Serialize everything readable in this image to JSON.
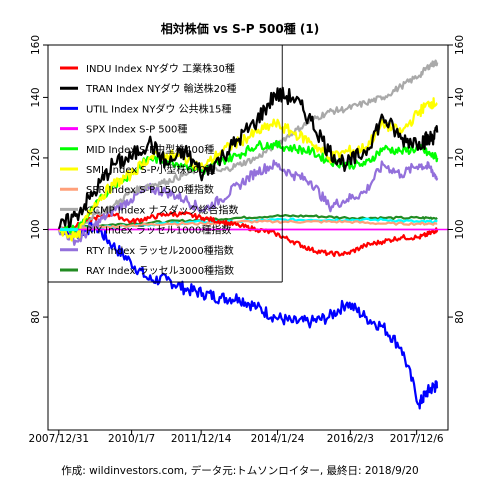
{
  "chart_data": {
    "type": "line",
    "title": "相対株価 vs S-P 500種 (1)",
    "caption": "作成: wildinvestors.com, データ元:トムソンロイター, 最終日: 2018/9/20",
    "xlabel": "",
    "ylabel": "",
    "x_ticks": [
      "2007/12/31",
      "2010/1/7",
      "2011/12/14",
      "2014/1/24",
      "2016/2/3",
      "2017/12/6"
    ],
    "x_tick_positions": [
      0.0,
      2.02,
      3.95,
      6.07,
      8.09,
      9.93
    ],
    "xlim": [
      -0.3,
      10.8
    ],
    "ylim": [
      60,
      160
    ],
    "y_ticks_left": [
      "80",
      "100",
      "120",
      "140",
      "160"
    ],
    "y_ticks_right": [
      "80",
      "100",
      "120",
      "140",
      "160"
    ],
    "y_tick_values": [
      80,
      100,
      120,
      140,
      160
    ],
    "log_scale": true,
    "grid": false,
    "reference_line": {
      "y": 100,
      "color": "#ff00ff"
    },
    "legend_position": "top-left",
    "series": [
      {
        "name": "INDU Index NYダウ 工業株30種",
        "color": "#ff0000",
        "x": [
          0,
          0.5,
          1,
          1.5,
          2,
          2.5,
          3,
          3.5,
          4,
          4.5,
          5,
          5.5,
          6,
          6.5,
          7,
          7.5,
          8,
          8.5,
          9,
          9.5,
          10,
          10.3,
          10.5
        ],
        "values": [
          100,
          101,
          103,
          104,
          102,
          103,
          104,
          104,
          103,
          102,
          101,
          100,
          99,
          97,
          95,
          94,
          94,
          96,
          97,
          98,
          98,
          99,
          100
        ]
      },
      {
        "name": "TRAN Index NYダウ 輸送株20種",
        "color": "#000000",
        "x": [
          0,
          0.5,
          1,
          1.5,
          2,
          2.5,
          3,
          3.5,
          4,
          4.5,
          5,
          5.5,
          6,
          6.5,
          7,
          7.5,
          8,
          8.5,
          9,
          9.5,
          10,
          10.3,
          10.5
        ],
        "values": [
          100,
          104,
          110,
          118,
          120,
          125,
          118,
          122,
          115,
          120,
          126,
          132,
          141,
          140,
          132,
          122,
          118,
          122,
          133,
          126,
          125,
          126,
          128
        ]
      },
      {
        "name": "UTIL Index NYダウ 公共株15種",
        "color": "#0000ff",
        "x": [
          0,
          0.5,
          1,
          1.5,
          2,
          2.5,
          3,
          3.5,
          4,
          4.5,
          5,
          5.5,
          6,
          6.5,
          7,
          7.5,
          8,
          8.5,
          9,
          9.5,
          10,
          10.2,
          10.4,
          10.5
        ],
        "values": [
          100,
          99,
          101,
          96,
          92,
          88,
          88,
          86,
          85,
          84,
          84,
          82,
          80,
          79,
          79,
          80,
          83,
          80,
          78,
          74,
          64,
          66,
          67,
          67
        ]
      },
      {
        "name": "SPX Index S-P 500種",
        "color": "#ff00ff",
        "x": [
          0,
          10.5
        ],
        "values": [
          100,
          100
        ]
      },
      {
        "name": "MID Index S-P中型株400種",
        "color": "#00ff00",
        "x": [
          0,
          0.5,
          1,
          1.5,
          2,
          2.5,
          3,
          3.5,
          4,
          4.5,
          5,
          5.5,
          6,
          6.5,
          7,
          7.5,
          8,
          8.5,
          9,
          9.5,
          10,
          10.3,
          10.5
        ],
        "values": [
          100,
          100,
          106,
          112,
          115,
          120,
          119,
          118,
          116,
          119,
          121,
          124,
          124,
          123,
          122,
          119,
          118,
          118,
          123,
          122,
          123,
          121,
          120
        ]
      },
      {
        "name": "SML Index S-P小型株600種",
        "color": "#ffff00",
        "x": [
          0,
          0.5,
          1,
          1.5,
          2,
          2.5,
          3,
          3.5,
          4,
          4.5,
          5,
          5.5,
          6,
          6.5,
          7,
          7.5,
          8,
          8.5,
          9,
          9.5,
          10,
          10.3,
          10.5
        ],
        "values": [
          100,
          98,
          107,
          112,
          115,
          120,
          121,
          120,
          117,
          122,
          125,
          128,
          131,
          128,
          125,
          120,
          122,
          123,
          131,
          128,
          135,
          138,
          138
        ]
      },
      {
        "name": "SPR Index S-P 1500種指数",
        "color": "#ffa07a",
        "x": [
          0,
          1,
          2,
          3,
          4,
          5,
          6,
          7,
          8,
          9,
          10,
          10.5
        ],
        "values": [
          100,
          100.5,
          101,
          101.5,
          101.5,
          102,
          102,
          102,
          102,
          101.5,
          101.5,
          101.5
        ]
      },
      {
        "name": "CCMP Index ナスダック総合指数",
        "color": "#a9a9a9",
        "x": [
          0,
          0.5,
          1,
          1.5,
          2,
          2.5,
          3,
          3.5,
          4,
          4.5,
          5,
          5.5,
          6,
          6.5,
          7,
          7.5,
          8,
          8.5,
          9,
          9.5,
          10,
          10.3,
          10.5
        ],
        "values": [
          100,
          100,
          104,
          106,
          110,
          112,
          113,
          115,
          117,
          116,
          118,
          120,
          124,
          128,
          132,
          135,
          136,
          138,
          140,
          144,
          148,
          152,
          153
        ]
      },
      {
        "name": "RIY Index ラッセル1000種指数",
        "color": "#00ffff",
        "x": [
          0,
          1,
          2,
          3,
          4,
          5,
          6,
          7,
          8,
          9,
          10,
          10.5
        ],
        "values": [
          100,
          100.5,
          101,
          101.5,
          102,
          102,
          102.5,
          102.5,
          102.5,
          102.5,
          102,
          102
        ]
      },
      {
        "name": "RTY Index ラッセル2000種指数",
        "color": "#9370db",
        "x": [
          0,
          0.5,
          1,
          1.5,
          2,
          2.5,
          3,
          3.5,
          4,
          4.5,
          5,
          5.5,
          6,
          6.5,
          7,
          7.5,
          8,
          8.5,
          9,
          9.5,
          10,
          10.3,
          10.5
        ],
        "values": [
          100,
          97,
          101,
          105,
          108,
          111,
          110,
          108,
          105,
          108,
          112,
          116,
          118,
          115,
          113,
          106,
          108,
          110,
          118,
          115,
          118,
          117,
          114
        ]
      },
      {
        "name": "RAY Index ラッセル3000種指数",
        "color": "#228b22",
        "x": [
          0,
          1,
          2,
          3,
          4,
          5,
          6,
          7,
          8,
          9,
          10,
          10.5
        ],
        "values": [
          100,
          101,
          101.5,
          102,
          102.5,
          103,
          103.5,
          103.5,
          103,
          103,
          103,
          103
        ]
      }
    ]
  }
}
